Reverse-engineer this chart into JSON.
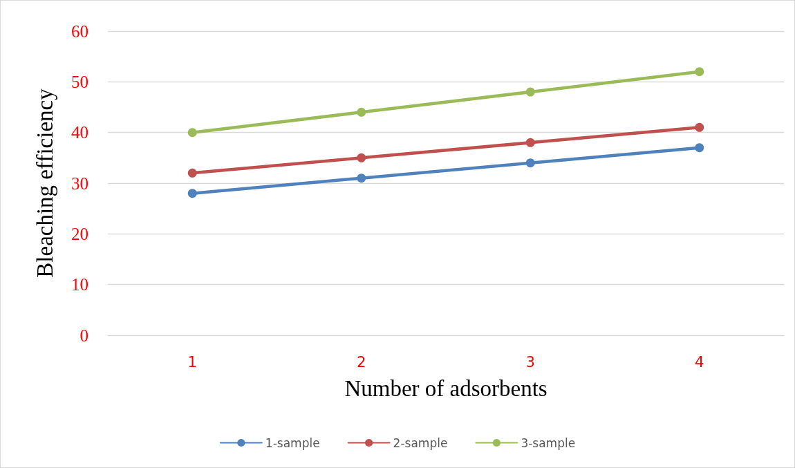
{
  "chart_data": {
    "type": "line",
    "xlabel": "Number of adsorbents",
    "ylabel": "Bleaching efficiency",
    "categories": [
      "1",
      "2",
      "3",
      "4"
    ],
    "series": [
      {
        "name": "1-sample",
        "color": "#4f81bd",
        "values": [
          28,
          31,
          34,
          37
        ]
      },
      {
        "name": "2-sample",
        "color": "#c0504d",
        "values": [
          32,
          35,
          38,
          41
        ]
      },
      {
        "name": "3-sample",
        "color": "#9bbb59",
        "values": [
          40,
          44,
          48,
          52
        ]
      }
    ],
    "ylim": [
      0,
      60
    ],
    "yticks": [
      0,
      10,
      20,
      30,
      40,
      50,
      60
    ],
    "grid": "y",
    "legend": "bottom",
    "marker": "circle",
    "line_style": "solid"
  }
}
